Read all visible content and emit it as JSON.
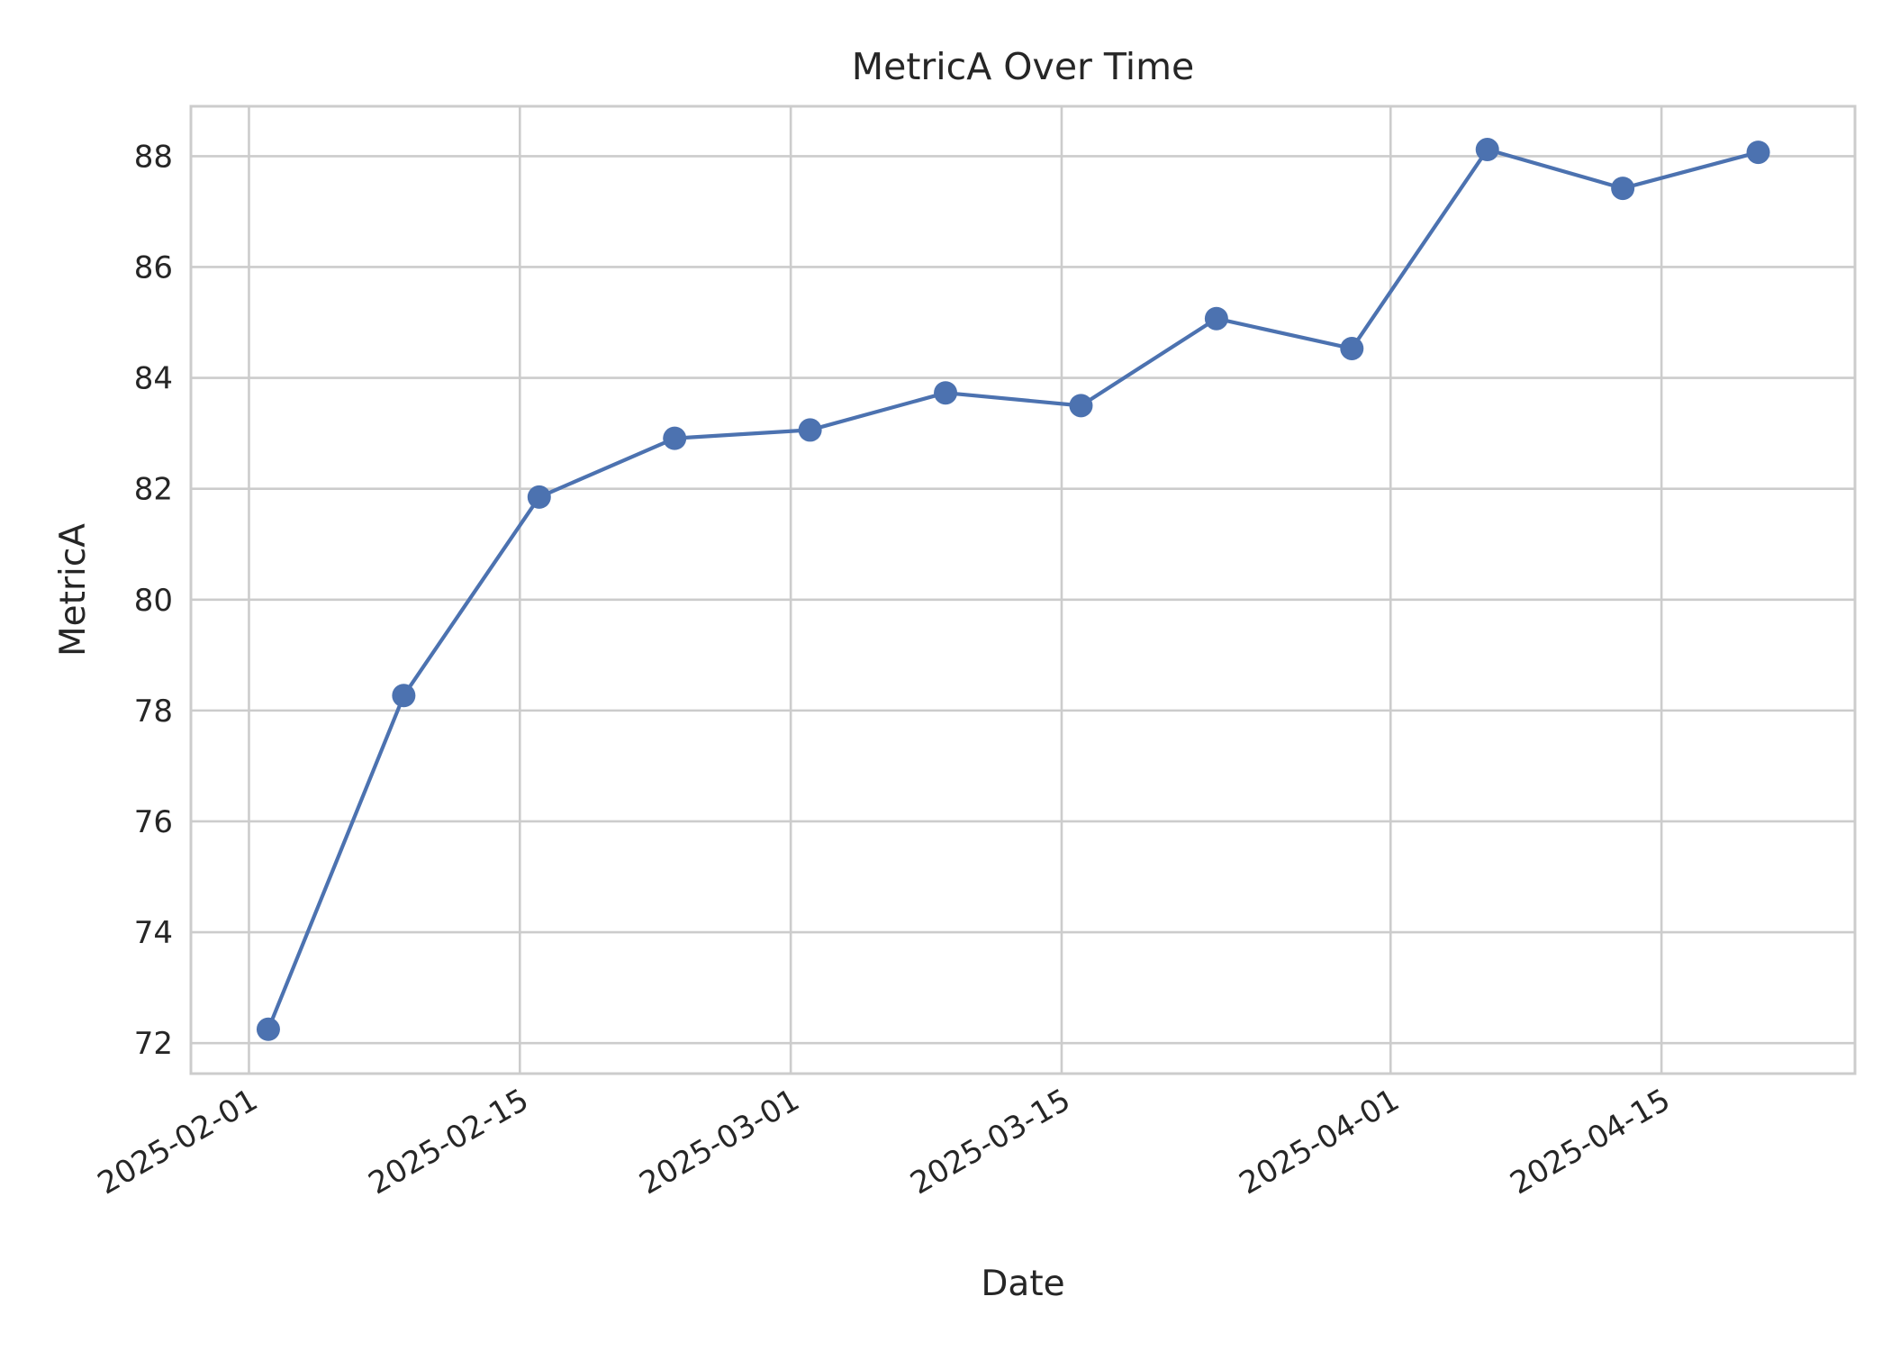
{
  "chart_data": {
    "type": "line",
    "title": "MetricA Over Time",
    "xlabel": "Date",
    "ylabel": "MetricA",
    "x_type": "date",
    "x": [
      "2025-02-02",
      "2025-02-09",
      "2025-02-16",
      "2025-02-23",
      "2025-03-02",
      "2025-03-09",
      "2025-03-16",
      "2025-03-23",
      "2025-03-30",
      "2025-04-06",
      "2025-04-13",
      "2025-04-20"
    ],
    "series": [
      {
        "values": [
          72.25,
          78.27,
          81.85,
          82.91,
          83.06,
          83.73,
          83.5,
          85.07,
          84.53,
          88.12,
          87.42,
          88.07
        ],
        "color": "#4c72b0",
        "marker": "circle"
      }
    ],
    "xlim": [
      "2025-01-29",
      "2025-04-25"
    ],
    "ylim": [
      71.45,
      88.9
    ],
    "x_ticks": [
      "2025-02-01",
      "2025-02-15",
      "2025-03-01",
      "2025-03-15",
      "2025-04-01",
      "2025-04-15"
    ],
    "y_ticks": [
      "72",
      "74",
      "76",
      "78",
      "80",
      "82",
      "84",
      "86",
      "88"
    ],
    "grid": true,
    "legend": "none",
    "colors": {
      "line": "#4c72b0",
      "grid": "#cccccc",
      "spine": "#cccccc",
      "text": "#262626",
      "background": "#ffffff"
    }
  }
}
